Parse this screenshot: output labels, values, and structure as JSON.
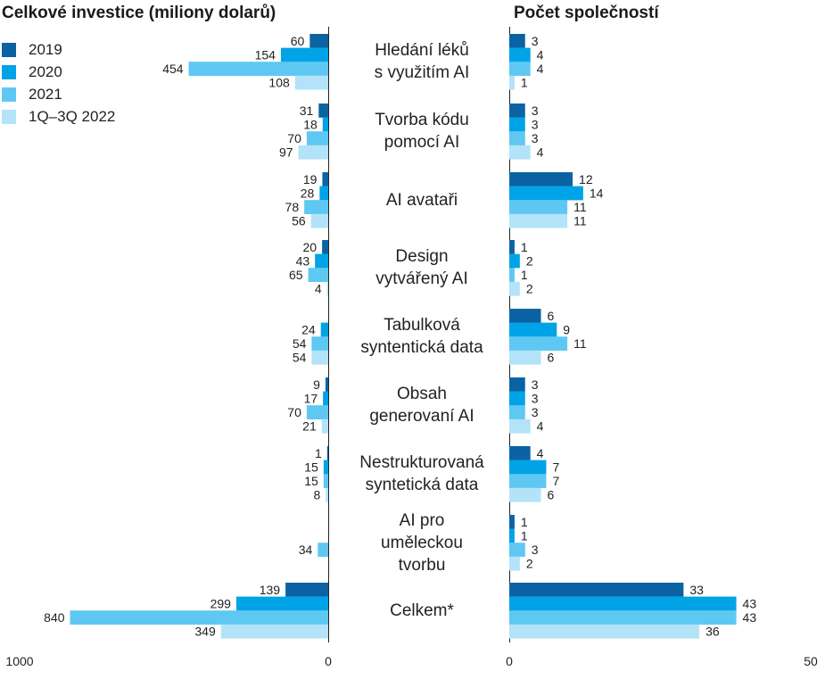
{
  "colors": [
    "#0b63a3",
    "#00a3e6",
    "#5ec8f2",
    "#b3e3f8"
  ],
  "legend": [
    "2019",
    "2020",
    "2021",
    "1Q–3Q 2022"
  ],
  "chart_data": [
    {
      "type": "bar",
      "orientation": "horizontal",
      "title": "Celkové investice (miliony dolarů)",
      "categories": [
        [
          "Hledání léků",
          "s využitím AI"
        ],
        [
          "Tvorba kódu",
          "pomocí AI"
        ],
        [
          "AI avataři"
        ],
        [
          "Design",
          "vytvářený AI"
        ],
        [
          "Tabulková",
          "syntentická data"
        ],
        [
          "Obsah",
          "generovaní AI"
        ],
        [
          "Nestrukturovaná",
          "syntetická data"
        ],
        [
          "AI pro",
          "uměleckou",
          "tvorbu"
        ],
        [
          "Celkem*"
        ]
      ],
      "series": [
        {
          "name": "2019",
          "values": [
            60,
            31,
            19,
            20,
            null,
            9,
            1,
            null,
            139
          ]
        },
        {
          "name": "2020",
          "values": [
            154,
            18,
            28,
            43,
            24,
            17,
            15,
            null,
            299
          ]
        },
        {
          "name": "2021",
          "values": [
            454,
            70,
            78,
            65,
            54,
            70,
            15,
            34,
            840
          ]
        },
        {
          "name": "1Q–3Q 2022",
          "values": [
            108,
            97,
            56,
            4,
            54,
            21,
            8,
            null,
            349
          ]
        }
      ],
      "xlim": [
        1000,
        0
      ],
      "tick_labels": [
        "1000",
        "0"
      ],
      "grid": false
    },
    {
      "type": "bar",
      "orientation": "horizontal",
      "title": "Počet společností",
      "series": [
        {
          "name": "2019",
          "values": [
            3,
            3,
            12,
            1,
            6,
            3,
            4,
            1,
            33
          ]
        },
        {
          "name": "2020",
          "values": [
            4,
            3,
            14,
            2,
            9,
            3,
            7,
            1,
            43
          ]
        },
        {
          "name": "2021",
          "values": [
            4,
            3,
            11,
            1,
            11,
            3,
            7,
            3,
            43
          ]
        },
        {
          "name": "1Q–3Q 2022",
          "values": [
            1,
            4,
            11,
            2,
            6,
            4,
            6,
            2,
            36
          ]
        }
      ],
      "xlim": [
        0,
        50
      ],
      "tick_labels": [
        "0",
        "50"
      ],
      "grid": false
    }
  ]
}
